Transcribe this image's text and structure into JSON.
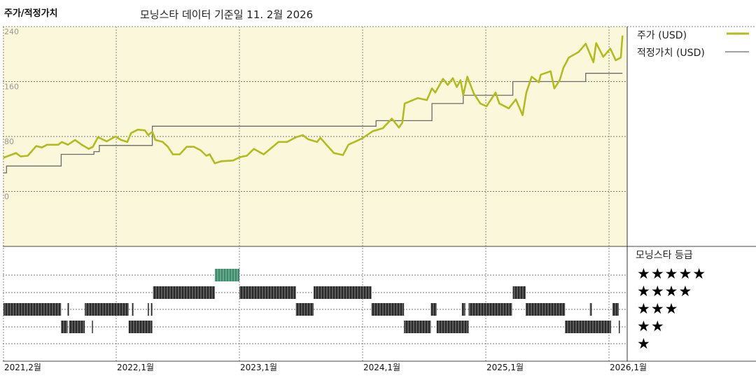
{
  "header": {
    "title": "주가/적정가치",
    "subtitle": "모닝스타 데이터 기준일 11. 2월 2026"
  },
  "colors": {
    "price": "#b3bb1f",
    "fair_value": "#6b6b6b",
    "plot_bg": "#faf7da",
    "rating_bar": "#333333",
    "rating_bar_5": "#3d8b6b"
  },
  "rating_legend": {
    "title": "모닝스타 등급",
    "stars": [
      "★★★★★",
      "★★★★",
      "★★★",
      "★★",
      "★"
    ]
  },
  "chart_data": {
    "type": "line",
    "title": "주가/적정가치",
    "y_ticks": [
      "240",
      "160",
      "80",
      "0"
    ],
    "y_tick_values": [
      240,
      160,
      80,
      0
    ],
    "ylim": [
      -80,
      240
    ],
    "x_ticks": [
      "2021,2월",
      "2022,1월",
      "2023,1월",
      "2024,1월",
      "2025,1월",
      "2026,1월"
    ],
    "x_tick_dates": [
      "2021-02-01",
      "2022-01-01",
      "2023-01-01",
      "2024-01-01",
      "2025-01-01",
      "2026-01-01"
    ],
    "grid": true,
    "legend_placement": "right",
    "series": [
      {
        "name": "주가 (USD)",
        "style": "line",
        "points": [
          [
            "2021-02-01",
            49
          ],
          [
            "2021-03-10",
            56
          ],
          [
            "2021-03-24",
            51
          ],
          [
            "2021-04-14",
            52
          ],
          [
            "2021-05-09",
            66
          ],
          [
            "2021-05-26",
            64
          ],
          [
            "2021-06-10",
            68
          ],
          [
            "2021-07-13",
            68
          ],
          [
            "2021-07-24",
            72
          ],
          [
            "2021-08-11",
            68
          ],
          [
            "2021-09-01",
            75
          ],
          [
            "2021-09-21",
            68
          ],
          [
            "2021-10-12",
            62
          ],
          [
            "2021-10-24",
            65
          ],
          [
            "2021-11-08",
            79
          ],
          [
            "2021-12-04",
            73
          ],
          [
            "2021-12-30",
            80
          ],
          [
            "2022-01-15",
            75
          ],
          [
            "2022-02-03",
            72
          ],
          [
            "2022-02-14",
            85
          ],
          [
            "2022-03-06",
            90
          ],
          [
            "2022-03-27",
            89
          ],
          [
            "2022-04-06",
            82
          ],
          [
            "2022-04-18",
            87
          ],
          [
            "2022-04-27",
            75
          ],
          [
            "2022-05-19",
            72
          ],
          [
            "2022-06-03",
            65
          ],
          [
            "2022-06-18",
            54
          ],
          [
            "2022-07-08",
            54
          ],
          [
            "2022-07-29",
            65
          ],
          [
            "2022-08-19",
            65
          ],
          [
            "2022-09-08",
            60
          ],
          [
            "2022-09-25",
            52
          ],
          [
            "2022-10-05",
            54
          ],
          [
            "2022-10-20",
            41
          ],
          [
            "2022-11-10",
            44
          ],
          [
            "2022-12-13",
            45
          ],
          [
            "2023-01-03",
            50
          ],
          [
            "2023-01-23",
            52
          ],
          [
            "2023-02-13",
            62
          ],
          [
            "2023-03-14",
            54
          ],
          [
            "2023-04-27",
            72
          ],
          [
            "2023-05-22",
            72
          ],
          [
            "2023-06-18",
            79
          ],
          [
            "2023-07-08",
            82
          ],
          [
            "2023-07-23",
            76
          ],
          [
            "2023-08-19",
            72
          ],
          [
            "2023-08-29",
            78
          ],
          [
            "2023-10-08",
            56
          ],
          [
            "2023-11-04",
            53
          ],
          [
            "2023-11-20",
            68
          ],
          [
            "2023-12-30",
            77
          ],
          [
            "2024-02-01",
            88
          ],
          [
            "2024-03-01",
            92
          ],
          [
            "2024-03-28",
            106
          ],
          [
            "2024-04-18",
            93
          ],
          [
            "2024-04-28",
            100
          ],
          [
            "2024-05-05",
            128
          ],
          [
            "2024-06-13",
            136
          ],
          [
            "2024-07-10",
            133
          ],
          [
            "2024-07-25",
            150
          ],
          [
            "2024-08-04",
            144
          ],
          [
            "2024-08-27",
            164
          ],
          [
            "2024-09-10",
            155
          ],
          [
            "2024-09-25",
            165
          ],
          [
            "2024-10-07",
            152
          ],
          [
            "2024-10-18",
            162
          ],
          [
            "2024-10-26",
            140
          ],
          [
            "2024-11-07",
            167
          ],
          [
            "2024-11-26",
            143
          ],
          [
            "2024-12-16",
            128
          ],
          [
            "2025-01-03",
            124
          ],
          [
            "2025-01-30",
            144
          ],
          [
            "2025-02-10",
            128
          ],
          [
            "2025-03-10",
            121
          ],
          [
            "2025-03-31",
            134
          ],
          [
            "2025-04-20",
            111
          ],
          [
            "2025-05-01",
            144
          ],
          [
            "2025-05-17",
            167
          ],
          [
            "2025-06-07",
            159
          ],
          [
            "2025-06-13",
            170
          ],
          [
            "2025-07-12",
            175
          ],
          [
            "2025-07-23",
            150
          ],
          [
            "2025-08-08",
            162
          ],
          [
            "2025-08-19",
            180
          ],
          [
            "2025-09-04",
            195
          ],
          [
            "2025-10-03",
            203
          ],
          [
            "2025-10-24",
            215
          ],
          [
            "2025-11-16",
            188
          ],
          [
            "2025-11-24",
            216
          ],
          [
            "2025-12-15",
            196
          ],
          [
            "2026-01-05",
            208
          ],
          [
            "2026-01-21",
            191
          ],
          [
            "2026-02-05",
            195
          ],
          [
            "2026-02-10",
            227
          ]
        ]
      },
      {
        "name": "적정가치 (USD)",
        "style": "step",
        "points": [
          [
            "2021-02-01",
            27
          ],
          [
            "2021-02-10",
            37
          ],
          [
            "2021-07-22",
            54
          ],
          [
            "2021-10-27",
            58
          ],
          [
            "2021-11-12",
            67
          ],
          [
            "2022-04-18",
            95
          ],
          [
            "2024-02-10",
            103
          ],
          [
            "2024-07-25",
            128
          ],
          [
            "2024-10-26",
            140
          ],
          [
            "2025-03-22",
            160
          ],
          [
            "2025-10-24",
            172
          ],
          [
            "2026-02-10",
            172
          ]
        ]
      }
    ],
    "ratings": [
      [
        3,
        "2021-02-01",
        "2021-07-22"
      ],
      [
        2,
        "2021-07-22",
        "2021-08-10"
      ],
      [
        3,
        "2021-08-10",
        "2021-08-14"
      ],
      [
        2,
        "2021-08-14",
        "2021-09-30"
      ],
      [
        2,
        "2021-10-21",
        "2021-10-23"
      ],
      [
        3,
        "2021-09-30",
        "2022-02-07"
      ],
      [
        2,
        "2022-02-07",
        "2022-04-18"
      ],
      [
        3,
        "2022-02-17",
        "2022-02-21"
      ],
      [
        3,
        "2022-04-04",
        "2022-04-08"
      ],
      [
        3,
        "2022-04-14",
        "2022-04-18"
      ],
      [
        4,
        "2022-04-20",
        "2022-10-20"
      ],
      [
        5,
        "2022-10-20",
        "2023-01-01"
      ],
      [
        4,
        "2023-01-01",
        "2023-06-17"
      ],
      [
        3,
        "2023-06-17",
        "2023-08-09"
      ],
      [
        4,
        "2023-08-09",
        "2024-01-27"
      ],
      [
        3,
        "2024-01-27",
        "2024-05-03"
      ],
      [
        2,
        "2024-05-03",
        "2024-07-22"
      ],
      [
        3,
        "2024-07-22",
        "2024-08-08"
      ],
      [
        2,
        "2024-08-08",
        "2024-11-11"
      ],
      [
        3,
        "2024-10-22",
        "2024-11-01"
      ],
      [
        3,
        "2024-11-11",
        "2025-03-20"
      ],
      [
        4,
        "2025-03-22",
        "2025-04-29"
      ],
      [
        3,
        "2025-04-29",
        "2025-08-24"
      ],
      [
        2,
        "2025-08-24",
        "2026-01-07"
      ],
      [
        3,
        "2025-11-05",
        "2025-11-11"
      ],
      [
        3,
        "2026-01-11",
        "2026-01-30"
      ],
      [
        2,
        "2026-01-30",
        "2026-02-01"
      ]
    ]
  }
}
